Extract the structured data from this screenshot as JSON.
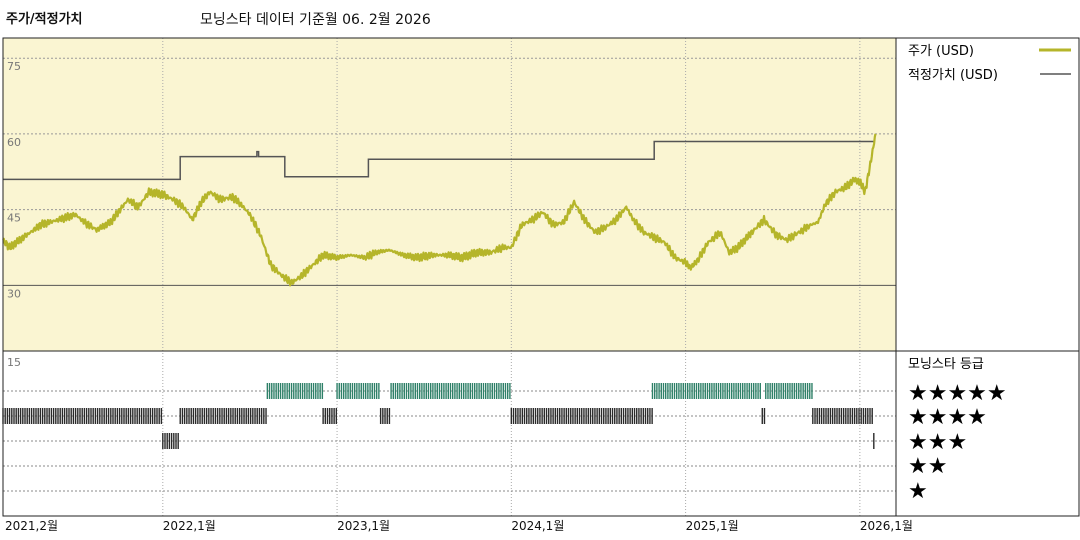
{
  "title": "주가/적정가치",
  "subtitle": "모닝스타 데이터 기준월 06. 2월 2026",
  "colors": {
    "price": "#b5b52a",
    "fair_value": "#555555",
    "upper_bg": "#faf5d2",
    "rating_5": "#2e8068",
    "rating_4": "#2a2a2a",
    "rating_3": "#2a2a2a",
    "rating_2": "#2a2a2a",
    "rating_1": "#2a2a2a"
  },
  "legend": {
    "price": "주가 (USD)",
    "fair_value": "적정가치 (USD)",
    "rating_title": "모닝스타 등급",
    "stars": [
      "★★★★★",
      "★★★★",
      "★★★",
      "★★",
      "★"
    ]
  },
  "chart_data": {
    "type": "line",
    "x_ticks": [
      {
        "t": 2021.083,
        "label": "2021,2월"
      },
      {
        "t": 2022.0,
        "label": "2022,1월"
      },
      {
        "t": 2023.0,
        "label": "2023,1월"
      },
      {
        "t": 2024.0,
        "label": "2024,1월"
      },
      {
        "t": 2025.0,
        "label": "2025,1월"
      },
      {
        "t": 2026.0,
        "label": "2026,1월"
      }
    ],
    "xlim": [
      2021.083,
      2026.15
    ],
    "ylim": [
      17,
      79
    ],
    "y_ticks": [
      {
        "v": 75,
        "label": "75"
      },
      {
        "v": 60,
        "label": "60"
      },
      {
        "v": 45,
        "label": "45"
      },
      {
        "v": 30,
        "label": "30"
      }
    ],
    "series": [
      {
        "name": "주가 (USD)",
        "points": [
          [
            2021.083,
            39
          ],
          [
            2021.12,
            37.5
          ],
          [
            2021.2,
            39.5
          ],
          [
            2021.3,
            42
          ],
          [
            2021.4,
            43
          ],
          [
            2021.5,
            44
          ],
          [
            2021.55,
            42.5
          ],
          [
            2021.62,
            41
          ],
          [
            2021.7,
            42.5
          ],
          [
            2021.8,
            47
          ],
          [
            2021.86,
            45.5
          ],
          [
            2021.92,
            48.5
          ],
          [
            2022.0,
            48
          ],
          [
            2022.06,
            47
          ],
          [
            2022.12,
            45.5
          ],
          [
            2022.17,
            43
          ],
          [
            2022.22,
            46.5
          ],
          [
            2022.27,
            48.5
          ],
          [
            2022.33,
            47
          ],
          [
            2022.4,
            47.5
          ],
          [
            2022.45,
            46
          ],
          [
            2022.5,
            44
          ],
          [
            2022.56,
            40
          ],
          [
            2022.62,
            34
          ],
          [
            2022.68,
            32
          ],
          [
            2022.74,
            30.5
          ],
          [
            2022.8,
            32
          ],
          [
            2022.86,
            34
          ],
          [
            2022.92,
            36
          ],
          [
            2023.0,
            35.5
          ],
          [
            2023.08,
            36
          ],
          [
            2023.16,
            35.5
          ],
          [
            2023.22,
            36.5
          ],
          [
            2023.3,
            37
          ],
          [
            2023.38,
            36
          ],
          [
            2023.46,
            35.5
          ],
          [
            2023.55,
            36
          ],
          [
            2023.64,
            36
          ],
          [
            2023.72,
            35.5
          ],
          [
            2023.8,
            36.5
          ],
          [
            2023.88,
            36.5
          ],
          [
            2023.95,
            37.5
          ],
          [
            2024.0,
            37.5
          ],
          [
            2024.06,
            42
          ],
          [
            2024.12,
            43
          ],
          [
            2024.18,
            44.5
          ],
          [
            2024.24,
            42
          ],
          [
            2024.3,
            42.5
          ],
          [
            2024.36,
            46.5
          ],
          [
            2024.42,
            43
          ],
          [
            2024.48,
            40.5
          ],
          [
            2024.54,
            41.5
          ],
          [
            2024.6,
            43
          ],
          [
            2024.66,
            45.5
          ],
          [
            2024.7,
            43
          ],
          [
            2024.76,
            40.5
          ],
          [
            2024.82,
            39.5
          ],
          [
            2024.88,
            38.5
          ],
          [
            2024.94,
            35.5
          ],
          [
            2025.0,
            34.5
          ],
          [
            2025.03,
            33.5
          ],
          [
            2025.07,
            35
          ],
          [
            2025.13,
            38.5
          ],
          [
            2025.2,
            40.5
          ],
          [
            2025.25,
            36.5
          ],
          [
            2025.3,
            37.5
          ],
          [
            2025.38,
            40.5
          ],
          [
            2025.45,
            43
          ],
          [
            2025.52,
            40
          ],
          [
            2025.58,
            39
          ],
          [
            2025.65,
            40.5
          ],
          [
            2025.72,
            42
          ],
          [
            2025.76,
            42.5
          ],
          [
            2025.8,
            46
          ],
          [
            2025.86,
            48.5
          ],
          [
            2025.92,
            49.5
          ],
          [
            2025.97,
            51
          ],
          [
            2026.0,
            50.5
          ],
          [
            2026.03,
            48.5
          ],
          [
            2026.06,
            54
          ],
          [
            2026.09,
            60
          ]
        ]
      },
      {
        "name": "적정가치 (USD)",
        "points": [
          [
            2021.083,
            51
          ],
          [
            2022.1,
            51
          ],
          [
            2022.1,
            55.5
          ],
          [
            2022.54,
            55.5
          ],
          [
            2022.54,
            56.5
          ],
          [
            2022.55,
            56.5
          ],
          [
            2022.55,
            55.5
          ],
          [
            2022.7,
            55.5
          ],
          [
            2022.7,
            51.5
          ],
          [
            2023.18,
            51.5
          ],
          [
            2023.18,
            55
          ],
          [
            2024.82,
            55
          ],
          [
            2024.82,
            58.5
          ],
          [
            2026.08,
            58.5
          ]
        ]
      }
    ],
    "rating_rows": [
      "★★★★★",
      "★★★★",
      "★★★",
      "★★",
      "★"
    ],
    "rating_y_tick": "15",
    "rating_periods": [
      {
        "stars": 4,
        "start": 2021.083,
        "end": 2022.0
      },
      {
        "stars": 3,
        "start": 2022.0,
        "end": 2022.1
      },
      {
        "stars": 4,
        "start": 2022.1,
        "end": 2022.6
      },
      {
        "stars": 5,
        "start": 2022.6,
        "end": 2022.92
      },
      {
        "stars": 4,
        "start": 2022.92,
        "end": 2023.0
      },
      {
        "stars": 5,
        "start": 2023.0,
        "end": 2023.25
      },
      {
        "stars": 4,
        "start": 2023.25,
        "end": 2023.31
      },
      {
        "stars": 5,
        "start": 2023.31,
        "end": 2024.0
      },
      {
        "stars": 4,
        "start": 2024.0,
        "end": 2024.81
      },
      {
        "stars": 5,
        "start": 2024.81,
        "end": 2025.44
      },
      {
        "stars": 4,
        "start": 2025.44,
        "end": 2025.46
      },
      {
        "stars": 5,
        "start": 2025.46,
        "end": 2025.73
      },
      {
        "stars": 4,
        "start": 2025.73,
        "end": 2026.08
      },
      {
        "stars": 3,
        "start": 2026.08,
        "end": 2026.09
      }
    ]
  }
}
